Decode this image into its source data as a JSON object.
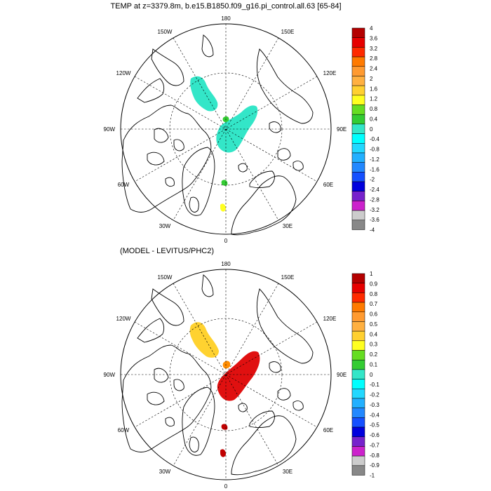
{
  "panels": [
    {
      "title": "TEMP at z=3379.8m, b.e15.B1850.f09_g16.pi_control.all.63 [65-84]",
      "lon_labels": {
        "top": "180",
        "bottom": "0",
        "left": "90W",
        "right": "90E",
        "ul1": "150W",
        "ul2": "120W",
        "ll1": "60W",
        "ll2": "30W",
        "ur1": "150E",
        "ur2": "120E",
        "lr1": "60E",
        "lr2": "30E"
      },
      "colorbar": {
        "labels": [
          "4",
          "3.6",
          "3.2",
          "2.8",
          "2.4",
          "2",
          "1.6",
          "1.2",
          "0.8",
          "0.4",
          "0",
          "-0.4",
          "-0.8",
          "-1.2",
          "-1.6",
          "-2",
          "-2.4",
          "-2.8",
          "-3.2",
          "-3.6",
          "-4"
        ]
      },
      "field_colors": {
        "main": "#33e6c8",
        "small1": "#33cc33",
        "small2": "#33cc33",
        "small3": "#ffff22"
      }
    },
    {
      "title": "(MODEL - LEVITUS/PHC2)",
      "lon_labels": {
        "top": "180",
        "bottom": "0",
        "left": "90W",
        "right": "90E",
        "ul1": "150W",
        "ul2": "120W",
        "ll1": "60W",
        "ll2": "30W",
        "ur1": "150E",
        "ur2": "120E",
        "lr1": "60E",
        "lr2": "30E"
      },
      "colorbar": {
        "labels": [
          "1",
          "0.9",
          "0.8",
          "0.7",
          "0.6",
          "0.5",
          "0.4",
          "0.3",
          "0.2",
          "0.1",
          "0",
          "-0.1",
          "-0.2",
          "-0.3",
          "-0.4",
          "-0.5",
          "-0.6",
          "-0.7",
          "-0.8",
          "-0.9",
          "-1"
        ]
      },
      "field_colors": {
        "main": "#e01010",
        "small1": "#ff8c00",
        "small2": "#c00000",
        "small3": "#c00000",
        "blob_upper": "#ffd230"
      }
    }
  ],
  "colorbar_colors": [
    "#b40000",
    "#e60000",
    "#ff2a00",
    "#ff7a00",
    "#ff9a30",
    "#ffb040",
    "#ffd030",
    "#ffff20",
    "#66dd22",
    "#33cc33",
    "#33e6c8",
    "#00ffff",
    "#22d8ff",
    "#22b0ff",
    "#2288ff",
    "#1550ff",
    "#0000dd",
    "#7722cc",
    "#cc22cc",
    "#cccccc",
    "#888888"
  ]
}
